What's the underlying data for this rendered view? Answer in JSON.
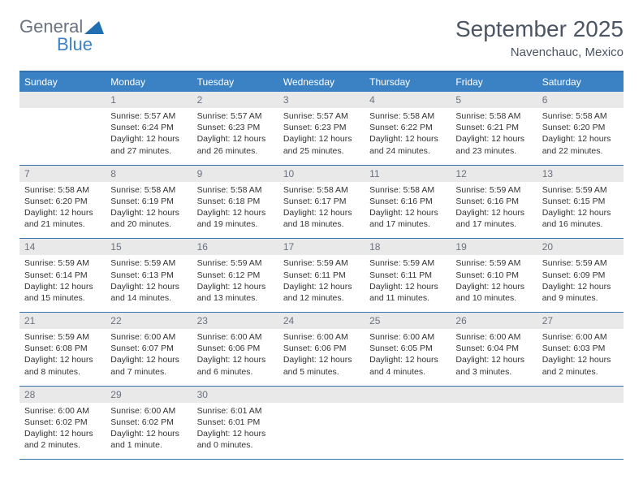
{
  "brand": {
    "word1": "General",
    "word2": "Blue"
  },
  "title": {
    "month": "September 2025",
    "location": "Navenchauc, Mexico"
  },
  "days": [
    "Sunday",
    "Monday",
    "Tuesday",
    "Wednesday",
    "Thursday",
    "Friday",
    "Saturday"
  ],
  "colors": {
    "header_bg": "#3b82c4",
    "header_text": "#ffffff",
    "border": "#3373b0",
    "daynum_bg": "#e9e9e9",
    "body_text": "#333333",
    "muted": "#6b7280"
  },
  "weeks": [
    {
      "nums": [
        "",
        "1",
        "2",
        "3",
        "4",
        "5",
        "6"
      ],
      "cells": [
        {},
        {
          "sr": "Sunrise: 5:57 AM",
          "ss": "Sunset: 6:24 PM",
          "dl": "Daylight: 12 hours and 27 minutes."
        },
        {
          "sr": "Sunrise: 5:57 AM",
          "ss": "Sunset: 6:23 PM",
          "dl": "Daylight: 12 hours and 26 minutes."
        },
        {
          "sr": "Sunrise: 5:57 AM",
          "ss": "Sunset: 6:23 PM",
          "dl": "Daylight: 12 hours and 25 minutes."
        },
        {
          "sr": "Sunrise: 5:58 AM",
          "ss": "Sunset: 6:22 PM",
          "dl": "Daylight: 12 hours and 24 minutes."
        },
        {
          "sr": "Sunrise: 5:58 AM",
          "ss": "Sunset: 6:21 PM",
          "dl": "Daylight: 12 hours and 23 minutes."
        },
        {
          "sr": "Sunrise: 5:58 AM",
          "ss": "Sunset: 6:20 PM",
          "dl": "Daylight: 12 hours and 22 minutes."
        }
      ]
    },
    {
      "nums": [
        "7",
        "8",
        "9",
        "10",
        "11",
        "12",
        "13"
      ],
      "cells": [
        {
          "sr": "Sunrise: 5:58 AM",
          "ss": "Sunset: 6:20 PM",
          "dl": "Daylight: 12 hours and 21 minutes."
        },
        {
          "sr": "Sunrise: 5:58 AM",
          "ss": "Sunset: 6:19 PM",
          "dl": "Daylight: 12 hours and 20 minutes."
        },
        {
          "sr": "Sunrise: 5:58 AM",
          "ss": "Sunset: 6:18 PM",
          "dl": "Daylight: 12 hours and 19 minutes."
        },
        {
          "sr": "Sunrise: 5:58 AM",
          "ss": "Sunset: 6:17 PM",
          "dl": "Daylight: 12 hours and 18 minutes."
        },
        {
          "sr": "Sunrise: 5:58 AM",
          "ss": "Sunset: 6:16 PM",
          "dl": "Daylight: 12 hours and 17 minutes."
        },
        {
          "sr": "Sunrise: 5:59 AM",
          "ss": "Sunset: 6:16 PM",
          "dl": "Daylight: 12 hours and 17 minutes."
        },
        {
          "sr": "Sunrise: 5:59 AM",
          "ss": "Sunset: 6:15 PM",
          "dl": "Daylight: 12 hours and 16 minutes."
        }
      ]
    },
    {
      "nums": [
        "14",
        "15",
        "16",
        "17",
        "18",
        "19",
        "20"
      ],
      "cells": [
        {
          "sr": "Sunrise: 5:59 AM",
          "ss": "Sunset: 6:14 PM",
          "dl": "Daylight: 12 hours and 15 minutes."
        },
        {
          "sr": "Sunrise: 5:59 AM",
          "ss": "Sunset: 6:13 PM",
          "dl": "Daylight: 12 hours and 14 minutes."
        },
        {
          "sr": "Sunrise: 5:59 AM",
          "ss": "Sunset: 6:12 PM",
          "dl": "Daylight: 12 hours and 13 minutes."
        },
        {
          "sr": "Sunrise: 5:59 AM",
          "ss": "Sunset: 6:11 PM",
          "dl": "Daylight: 12 hours and 12 minutes."
        },
        {
          "sr": "Sunrise: 5:59 AM",
          "ss": "Sunset: 6:11 PM",
          "dl": "Daylight: 12 hours and 11 minutes."
        },
        {
          "sr": "Sunrise: 5:59 AM",
          "ss": "Sunset: 6:10 PM",
          "dl": "Daylight: 12 hours and 10 minutes."
        },
        {
          "sr": "Sunrise: 5:59 AM",
          "ss": "Sunset: 6:09 PM",
          "dl": "Daylight: 12 hours and 9 minutes."
        }
      ]
    },
    {
      "nums": [
        "21",
        "22",
        "23",
        "24",
        "25",
        "26",
        "27"
      ],
      "cells": [
        {
          "sr": "Sunrise: 5:59 AM",
          "ss": "Sunset: 6:08 PM",
          "dl": "Daylight: 12 hours and 8 minutes."
        },
        {
          "sr": "Sunrise: 6:00 AM",
          "ss": "Sunset: 6:07 PM",
          "dl": "Daylight: 12 hours and 7 minutes."
        },
        {
          "sr": "Sunrise: 6:00 AM",
          "ss": "Sunset: 6:06 PM",
          "dl": "Daylight: 12 hours and 6 minutes."
        },
        {
          "sr": "Sunrise: 6:00 AM",
          "ss": "Sunset: 6:06 PM",
          "dl": "Daylight: 12 hours and 5 minutes."
        },
        {
          "sr": "Sunrise: 6:00 AM",
          "ss": "Sunset: 6:05 PM",
          "dl": "Daylight: 12 hours and 4 minutes."
        },
        {
          "sr": "Sunrise: 6:00 AM",
          "ss": "Sunset: 6:04 PM",
          "dl": "Daylight: 12 hours and 3 minutes."
        },
        {
          "sr": "Sunrise: 6:00 AM",
          "ss": "Sunset: 6:03 PM",
          "dl": "Daylight: 12 hours and 2 minutes."
        }
      ]
    },
    {
      "nums": [
        "28",
        "29",
        "30",
        "",
        "",
        "",
        ""
      ],
      "cells": [
        {
          "sr": "Sunrise: 6:00 AM",
          "ss": "Sunset: 6:02 PM",
          "dl": "Daylight: 12 hours and 2 minutes."
        },
        {
          "sr": "Sunrise: 6:00 AM",
          "ss": "Sunset: 6:02 PM",
          "dl": "Daylight: 12 hours and 1 minute."
        },
        {
          "sr": "Sunrise: 6:01 AM",
          "ss": "Sunset: 6:01 PM",
          "dl": "Daylight: 12 hours and 0 minutes."
        },
        {},
        {},
        {},
        {}
      ]
    }
  ]
}
